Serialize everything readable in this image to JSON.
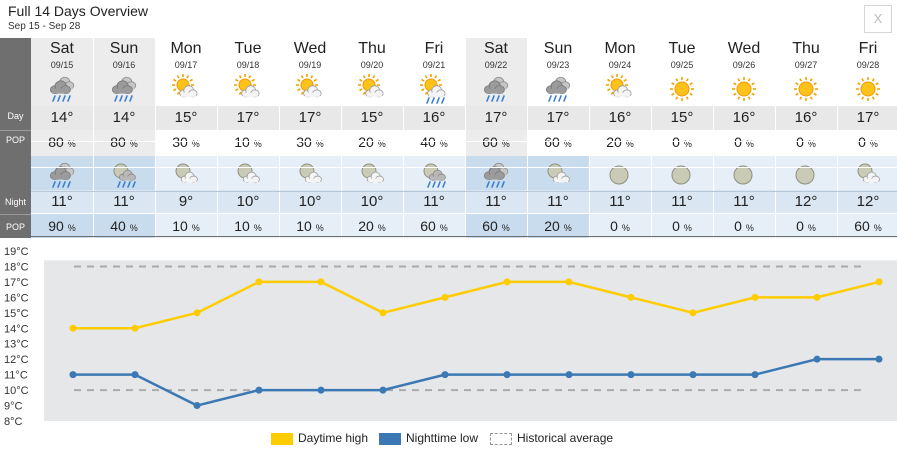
{
  "header": {
    "title": "Full 14 Days Overview",
    "subtitle": "Sep 15 - Sep 28",
    "close_label": "X"
  },
  "row_labels": {
    "day": "Day",
    "pop": "POP",
    "night": "Night",
    "npop": "POP"
  },
  "pop_unit": "%",
  "colors": {
    "leftbar": "#6f6f6f",
    "day_bg": "#ffffff",
    "day_bg_rain": "#ececec",
    "day_temp_bg": "#e8e8e8",
    "night_bg": "#e6eff8",
    "night_bg_rain": "#c9dcee",
    "night_temp_bg": "#dae6f2",
    "day_line": "#ffcc00",
    "night_line": "#3c78b4",
    "chart_bg": "#e5e7e9",
    "avg_line": "#aaaaaa"
  },
  "days": [
    {
      "dow": "Sat",
      "date": "09/15",
      "day_icon": "rain-cloud-icon",
      "day_temp": "14°",
      "day_pop": "80",
      "night_icon": "rain-cloud-icon",
      "night_temp": "11°",
      "night_pop": "90",
      "day_rain": true,
      "night_rain": true
    },
    {
      "dow": "Sun",
      "date": "09/16",
      "day_icon": "rain-cloud-icon",
      "day_temp": "14°",
      "day_pop": "80",
      "night_icon": "moon-rain-icon",
      "night_temp": "11°",
      "night_pop": "40",
      "day_rain": true,
      "night_rain": true
    },
    {
      "dow": "Mon",
      "date": "09/17",
      "day_icon": "sun-cloud-icon",
      "day_temp": "15°",
      "day_pop": "30",
      "night_icon": "moon-cloud-icon",
      "night_temp": "9°",
      "night_pop": "10",
      "day_rain": false,
      "night_rain": false
    },
    {
      "dow": "Tue",
      "date": "09/18",
      "day_icon": "sun-cloud-icon",
      "day_temp": "17°",
      "day_pop": "10",
      "night_icon": "moon-cloud-icon",
      "night_temp": "10°",
      "night_pop": "10",
      "day_rain": false,
      "night_rain": false
    },
    {
      "dow": "Wed",
      "date": "09/19",
      "day_icon": "sun-cloud-icon",
      "day_temp": "17°",
      "day_pop": "30",
      "night_icon": "moon-cloud-icon",
      "night_temp": "10°",
      "night_pop": "10",
      "day_rain": false,
      "night_rain": false
    },
    {
      "dow": "Thu",
      "date": "09/20",
      "day_icon": "sun-cloud-icon",
      "day_temp": "15°",
      "day_pop": "20",
      "night_icon": "moon-cloud-icon",
      "night_temp": "10°",
      "night_pop": "20",
      "day_rain": false,
      "night_rain": false
    },
    {
      "dow": "Fri",
      "date": "09/21",
      "day_icon": "sun-cloud-rain-icon",
      "day_temp": "16°",
      "day_pop": "40",
      "night_icon": "moon-rain-icon",
      "night_temp": "11°",
      "night_pop": "60",
      "day_rain": false,
      "night_rain": false
    },
    {
      "dow": "Sat",
      "date": "09/22",
      "day_icon": "rain-cloud-icon",
      "day_temp": "17°",
      "day_pop": "60",
      "night_icon": "rain-cloud-icon",
      "night_temp": "11°",
      "night_pop": "60",
      "day_rain": true,
      "night_rain": true
    },
    {
      "dow": "Sun",
      "date": "09/23",
      "day_icon": "rain-cloud-icon",
      "day_temp": "17°",
      "day_pop": "60",
      "night_icon": "moon-cloud-icon",
      "night_temp": "11°",
      "night_pop": "20",
      "day_rain": false,
      "night_rain": true
    },
    {
      "dow": "Mon",
      "date": "09/24",
      "day_icon": "sun-cloud-icon",
      "day_temp": "16°",
      "day_pop": "20",
      "night_icon": "moon-icon",
      "night_temp": "11°",
      "night_pop": "0",
      "day_rain": false,
      "night_rain": false
    },
    {
      "dow": "Tue",
      "date": "09/25",
      "day_icon": "sun-icon",
      "day_temp": "15°",
      "day_pop": "0",
      "night_icon": "moon-icon",
      "night_temp": "11°",
      "night_pop": "0",
      "day_rain": false,
      "night_rain": false
    },
    {
      "dow": "Wed",
      "date": "09/26",
      "day_icon": "sun-icon",
      "day_temp": "16°",
      "day_pop": "0",
      "night_icon": "moon-icon",
      "night_temp": "11°",
      "night_pop": "0",
      "day_rain": false,
      "night_rain": false
    },
    {
      "dow": "Thu",
      "date": "09/27",
      "day_icon": "sun-icon",
      "day_temp": "16°",
      "day_pop": "0",
      "night_icon": "moon-icon",
      "night_temp": "12°",
      "night_pop": "0",
      "day_rain": false,
      "night_rain": false
    },
    {
      "dow": "Fri",
      "date": "09/28",
      "day_icon": "sun-icon",
      "day_temp": "17°",
      "day_pop": "0",
      "night_icon": "moon-cloud-icon",
      "night_temp": "12°",
      "night_pop": "60",
      "day_rain": false,
      "night_rain": false
    }
  ],
  "chart_data": {
    "type": "line",
    "categories": [
      "09/15",
      "09/16",
      "09/17",
      "09/18",
      "09/19",
      "09/20",
      "09/21",
      "09/22",
      "09/23",
      "09/24",
      "09/25",
      "09/26",
      "09/27",
      "09/28"
    ],
    "series": [
      {
        "name": "Daytime high",
        "values": [
          14,
          14,
          15,
          17,
          17,
          15,
          16,
          17,
          17,
          16,
          15,
          16,
          16,
          17
        ]
      },
      {
        "name": "Nighttime low",
        "values": [
          11,
          11,
          9,
          10,
          10,
          10,
          11,
          11,
          11,
          11,
          11,
          11,
          12,
          12
        ]
      }
    ],
    "historical_average": {
      "name": "Historical average",
      "high": 18,
      "low": 10
    },
    "y_ticks": [
      "8°C",
      "9°C",
      "10°C",
      "11°C",
      "12°C",
      "13°C",
      "14°C",
      "15°C",
      "16°C",
      "17°C",
      "18°C",
      "19°C"
    ],
    "ylim": [
      8,
      19
    ],
    "legend_position": "bottom-center"
  }
}
